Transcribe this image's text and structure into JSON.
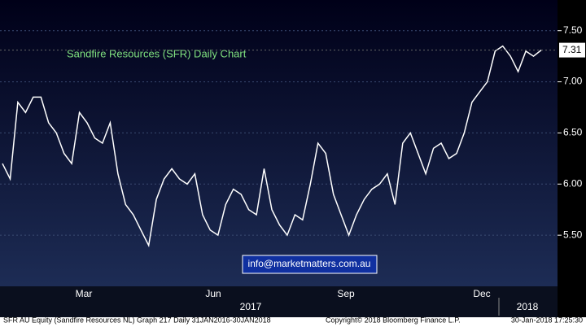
{
  "chart_data": {
    "type": "line",
    "title": "Sandfire Resources (SFR) Daily Chart",
    "color": "#ffffff",
    "values": [
      6.2,
      6.05,
      6.8,
      6.7,
      6.85,
      6.85,
      6.6,
      6.5,
      6.3,
      6.2,
      6.7,
      6.6,
      6.45,
      6.4,
      6.6,
      6.1,
      5.8,
      5.7,
      5.55,
      5.4,
      5.85,
      6.05,
      6.15,
      6.05,
      6.0,
      6.1,
      5.7,
      5.55,
      5.5,
      5.8,
      5.95,
      5.9,
      5.75,
      5.7,
      6.15,
      5.75,
      5.6,
      5.5,
      5.7,
      5.65,
      6.0,
      6.4,
      6.3,
      5.9,
      5.7,
      5.5,
      5.7,
      5.85,
      5.95,
      6.0,
      6.1,
      5.8,
      6.4,
      6.5,
      6.3,
      6.1,
      6.35,
      6.4,
      6.25,
      6.3,
      6.5,
      6.8,
      6.9,
      7.0,
      7.3,
      7.35,
      7.25,
      7.1,
      7.3,
      7.25,
      7.31
    ],
    "ylim": [
      5.0,
      7.8
    ],
    "yticks": [
      {
        "value": 5.5,
        "label": "5.50"
      },
      {
        "value": 6,
        "label": "6.00"
      },
      {
        "value": 6.5,
        "label": "6.50"
      },
      {
        "value": 7,
        "label": "7.00"
      },
      {
        "value": 7.5,
        "label": "7.50"
      }
    ],
    "month_labels": [
      "Mar",
      "Jun",
      "Sep",
      "Dec"
    ],
    "year_labels": [
      "2017",
      "2018"
    ],
    "watermark": "info@marketmatters.com.au",
    "grid": true
  },
  "footer": {
    "left": "SFR AU Equity (Sandfire Resources NL) Graph 217  Daily 31JAN2016-30JAN2018",
    "center": "Copyright© 2018 Bloomberg Finance L.P.",
    "right": "30-Jan-2018 17:25:30"
  }
}
